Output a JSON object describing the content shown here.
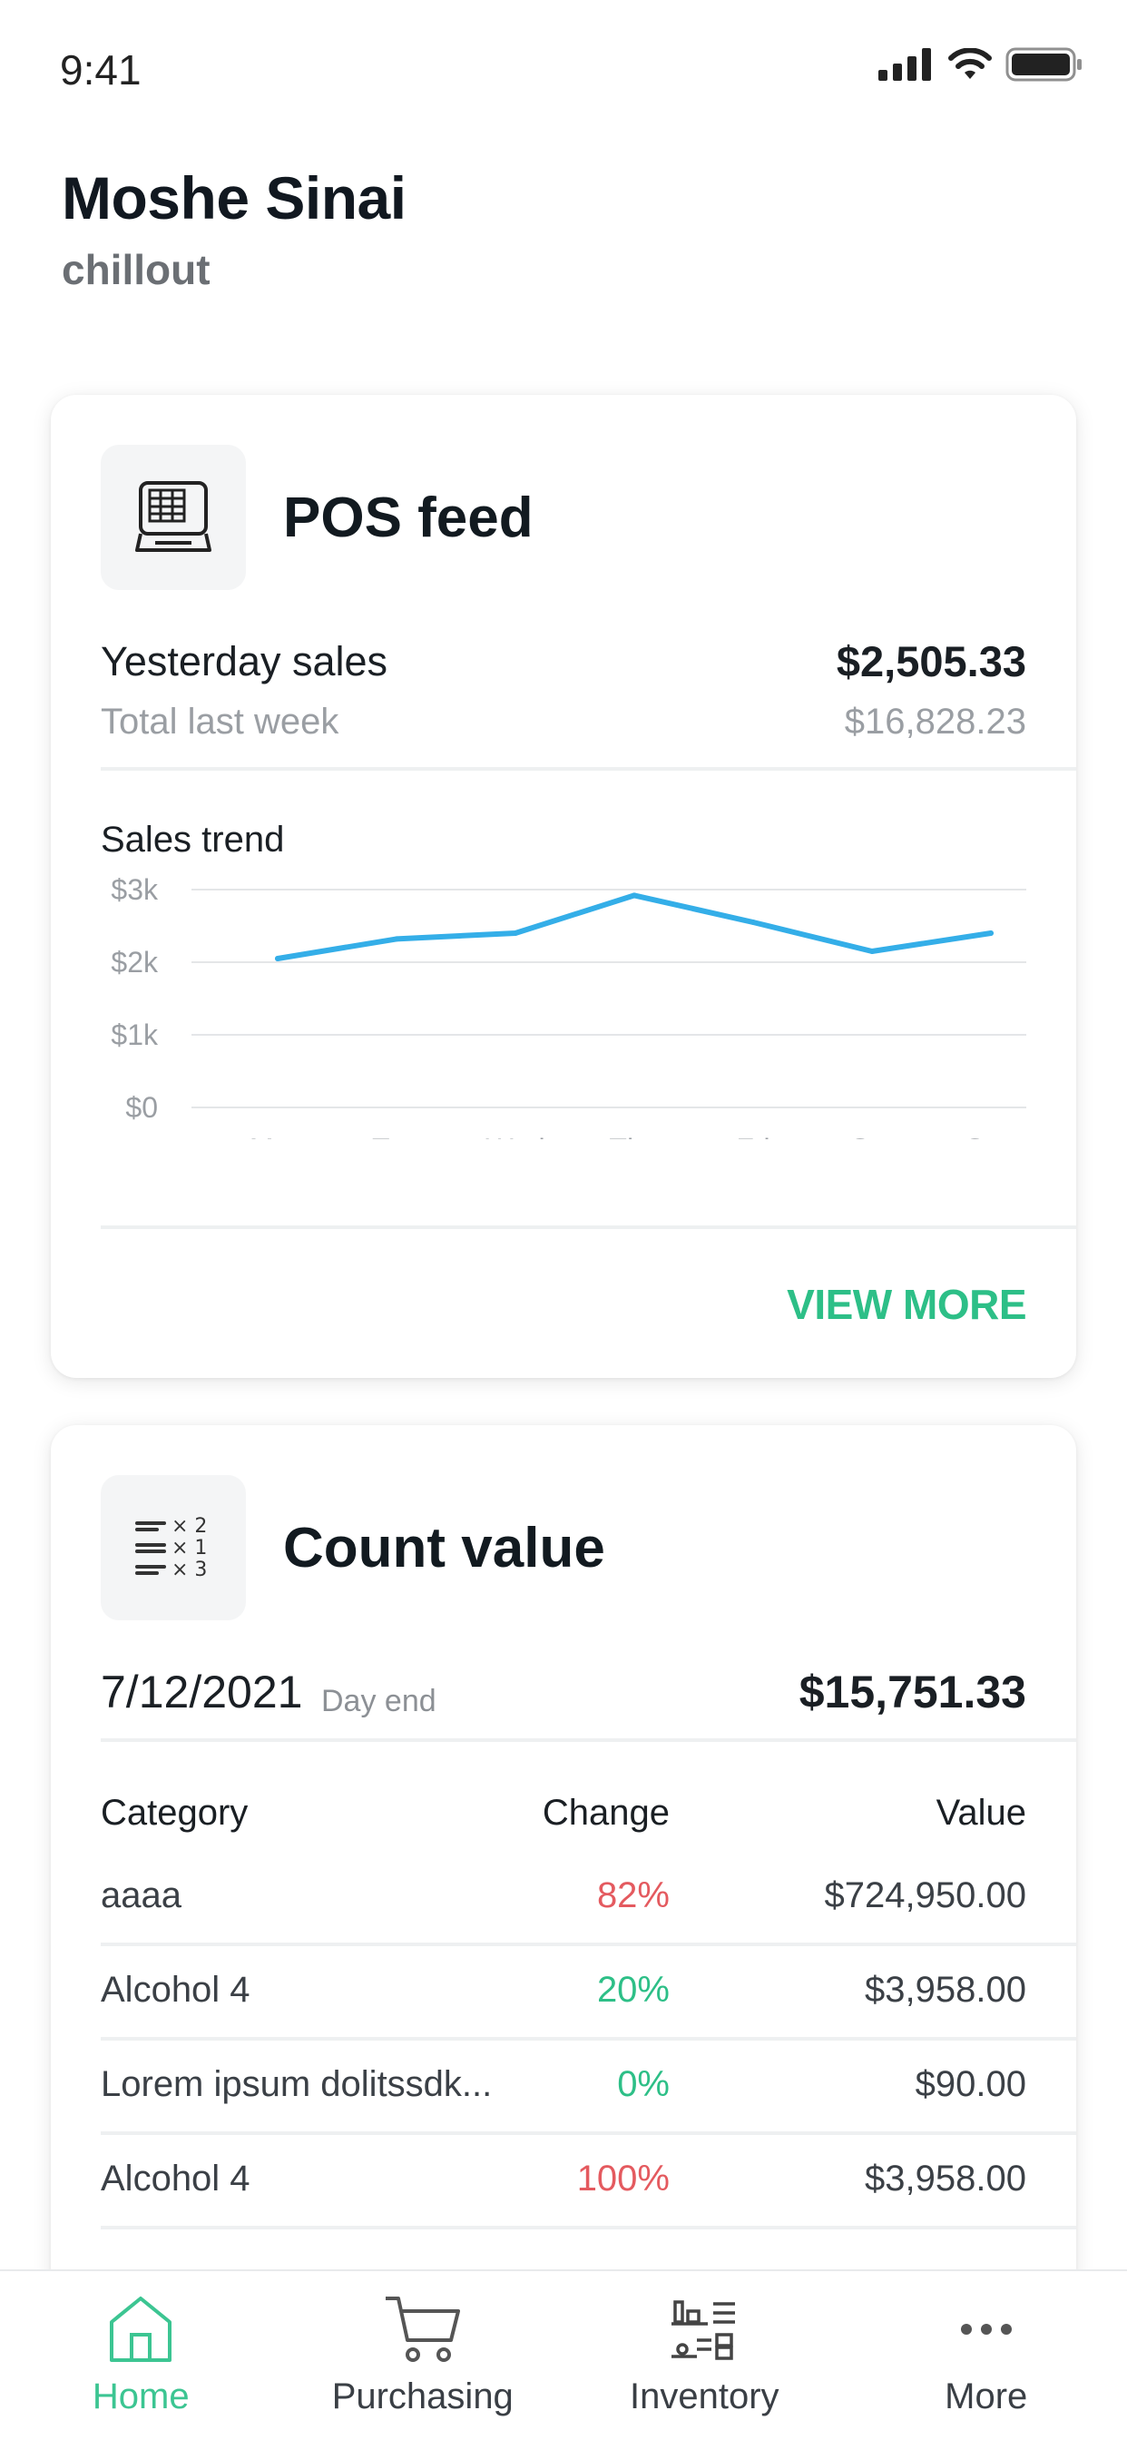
{
  "status_bar": {
    "time": "9:41"
  },
  "header": {
    "user_name": "Moshe Sinai",
    "org": "chillout"
  },
  "pos_card": {
    "title": "POS feed",
    "yesterday_label": "Yesterday sales",
    "yesterday_value": "$2,505.33",
    "last_week_label": "Total last week",
    "last_week_value": "$16,828.23",
    "chart_title": "Sales trend",
    "view_more": "VIEW MORE"
  },
  "chart_data": {
    "type": "line",
    "title": "Sales trend",
    "categories": [
      "Mon",
      "Tue",
      "Wed",
      "Thu",
      "Fri",
      "Sat",
      "Sun"
    ],
    "values": [
      2050,
      2320,
      2400,
      2920,
      2550,
      2150,
      2400
    ],
    "ylim": [
      0,
      3000
    ],
    "yticks": [
      "$0",
      "$1k",
      "$2k",
      "$3k"
    ],
    "ytick_values": [
      0,
      1000,
      2000,
      3000
    ],
    "grid": true,
    "line_color": "#34aee8"
  },
  "count_card": {
    "title": "Count value",
    "date": "7/12/2021",
    "date_note": "Day end",
    "total": "$15,751.33",
    "headers": {
      "category": "Category",
      "change": "Change",
      "value": "Value"
    },
    "rows": [
      {
        "category": "aaaa",
        "change": "82%",
        "trend": "negative",
        "value": "$724,950.00"
      },
      {
        "category": "Alcohol 4",
        "change": "20%",
        "trend": "positive",
        "value": "$3,958.00"
      },
      {
        "category": "Lorem ipsum dolitssdk...",
        "change": "0%",
        "trend": "positive",
        "value": "$90.00"
      },
      {
        "category": "Alcohol 4",
        "change": "100%",
        "trend": "negative",
        "value": "$3,958.00"
      }
    ]
  },
  "tab_bar": {
    "tabs": [
      {
        "label": "Home",
        "icon": "home-icon",
        "active": true
      },
      {
        "label": "Purchasing",
        "icon": "cart-icon",
        "active": false
      },
      {
        "label": "Inventory",
        "icon": "inventory-icon",
        "active": false
      },
      {
        "label": "More",
        "icon": "more-icon",
        "active": false
      }
    ]
  },
  "colors": {
    "accent": "#3cc592",
    "negative": "#e45a5f",
    "chart_line": "#34aee8"
  }
}
